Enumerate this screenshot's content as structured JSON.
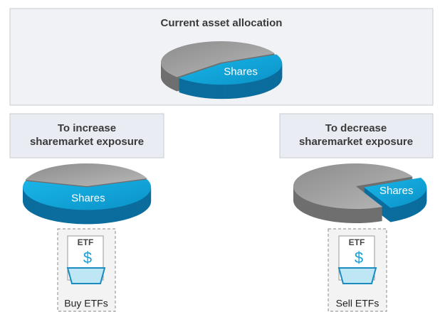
{
  "current": {
    "title": "Current asset allocation",
    "slice_label": "Shares",
    "shares_share": 45
  },
  "increase": {
    "title": "To increase sharemarket exposure",
    "slice_label": "Shares",
    "shares_share": 60,
    "icon": {
      "label": "ETF",
      "symbol": "$"
    },
    "action": "Buy ETFs"
  },
  "decrease": {
    "title": "To decrease sharemarket exposure",
    "slice_label": "Shares",
    "shares_share": 25,
    "icon": {
      "label": "ETF",
      "symbol": "$"
    },
    "action": "Sell ETFs"
  }
}
